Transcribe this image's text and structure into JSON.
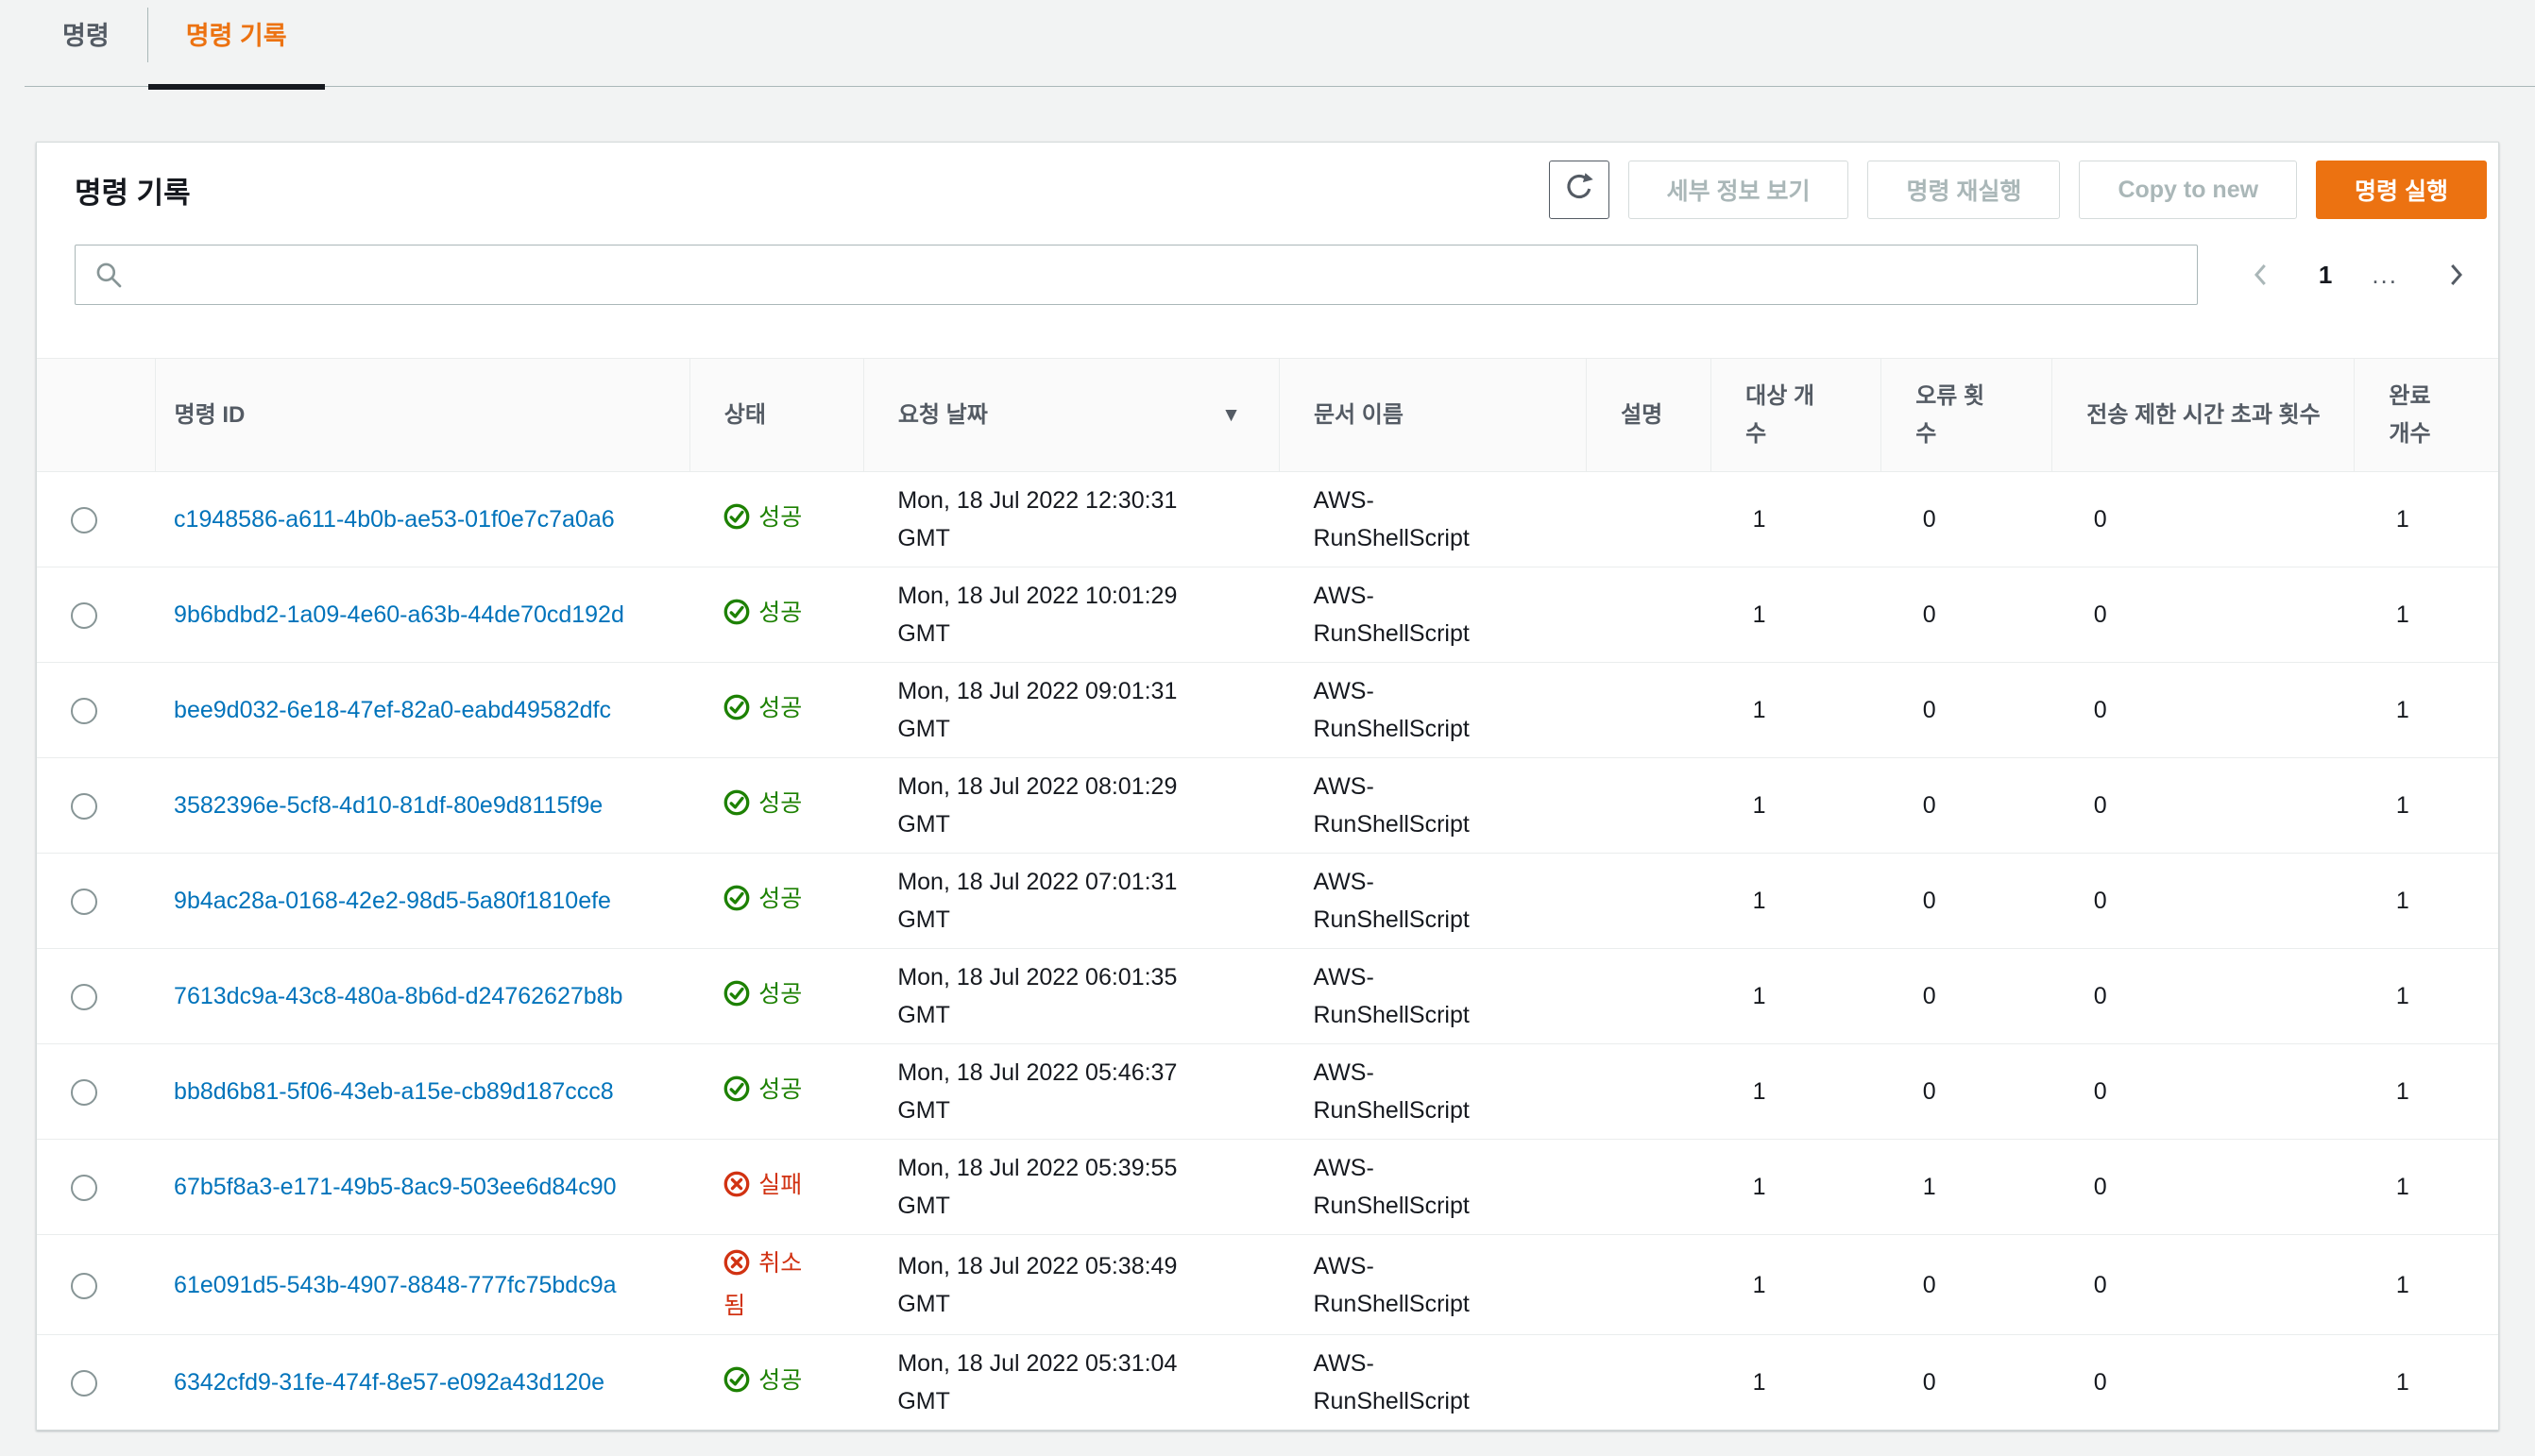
{
  "tabs": [
    {
      "label": "명령",
      "active": false
    },
    {
      "label": "명령 기록",
      "active": true
    }
  ],
  "panel": {
    "title": "명령 기록"
  },
  "toolbar": {
    "refresh_icon": "refresh-icon",
    "view_details_label": "세부 정보 보기",
    "rerun_label": "명령 재실행",
    "copy_to_new_label": "Copy to new",
    "run_command_label": "명령 실행"
  },
  "search": {
    "placeholder": "",
    "icon": "search-icon"
  },
  "pagination": {
    "prev_icon": "chevron-left-icon",
    "current_page": "1",
    "ellipsis": "...",
    "next_icon": "chevron-right-icon"
  },
  "colors": {
    "accent": "#ec7211",
    "link": "#0073bb",
    "success": "#1d8102",
    "error": "#d13212"
  },
  "table": {
    "columns": [
      {
        "key": "id",
        "label": "명령 ID"
      },
      {
        "key": "status",
        "label": "상태"
      },
      {
        "key": "date",
        "label": "요청 날짜",
        "sorted": "desc"
      },
      {
        "key": "doc",
        "label": "문서 이름"
      },
      {
        "key": "desc",
        "label": "설명"
      },
      {
        "key": "targets",
        "label": "대상 개수"
      },
      {
        "key": "errors",
        "label": "오류 횟수"
      },
      {
        "key": "timeouts",
        "label": "전송 제한 시간 초과 횟수"
      },
      {
        "key": "completed",
        "label": "완료 개수"
      }
    ],
    "rows": [
      {
        "id": "c1948586-a611-4b0b-ae53-01f0e7c7a0a6",
        "status": {
          "type": "success",
          "label": "성공"
        },
        "date": "Mon, 18 Jul 2022 12:30:31 GMT",
        "doc": "AWS-RunShellScript",
        "desc": "",
        "targets": "1",
        "errors": "0",
        "timeouts": "0",
        "completed": "1"
      },
      {
        "id": "9b6bdbd2-1a09-4e60-a63b-44de70cd192d",
        "status": {
          "type": "success",
          "label": "성공"
        },
        "date": "Mon, 18 Jul 2022 10:01:29 GMT",
        "doc": "AWS-RunShellScript",
        "desc": "",
        "targets": "1",
        "errors": "0",
        "timeouts": "0",
        "completed": "1"
      },
      {
        "id": "bee9d032-6e18-47ef-82a0-eabd49582dfc",
        "status": {
          "type": "success",
          "label": "성공"
        },
        "date": "Mon, 18 Jul 2022 09:01:31 GMT",
        "doc": "AWS-RunShellScript",
        "desc": "",
        "targets": "1",
        "errors": "0",
        "timeouts": "0",
        "completed": "1"
      },
      {
        "id": "3582396e-5cf8-4d10-81df-80e9d8115f9e",
        "status": {
          "type": "success",
          "label": "성공"
        },
        "date": "Mon, 18 Jul 2022 08:01:29 GMT",
        "doc": "AWS-RunShellScript",
        "desc": "",
        "targets": "1",
        "errors": "0",
        "timeouts": "0",
        "completed": "1"
      },
      {
        "id": "9b4ac28a-0168-42e2-98d5-5a80f1810efe",
        "status": {
          "type": "success",
          "label": "성공"
        },
        "date": "Mon, 18 Jul 2022 07:01:31 GMT",
        "doc": "AWS-RunShellScript",
        "desc": "",
        "targets": "1",
        "errors": "0",
        "timeouts": "0",
        "completed": "1"
      },
      {
        "id": "7613dc9a-43c8-480a-8b6d-d24762627b8b",
        "status": {
          "type": "success",
          "label": "성공"
        },
        "date": "Mon, 18 Jul 2022 06:01:35 GMT",
        "doc": "AWS-RunShellScript",
        "desc": "",
        "targets": "1",
        "errors": "0",
        "timeouts": "0",
        "completed": "1"
      },
      {
        "id": "bb8d6b81-5f06-43eb-a15e-cb89d187ccc8",
        "status": {
          "type": "success",
          "label": "성공"
        },
        "date": "Mon, 18 Jul 2022 05:46:37 GMT",
        "doc": "AWS-RunShellScript",
        "desc": "",
        "targets": "1",
        "errors": "0",
        "timeouts": "0",
        "completed": "1"
      },
      {
        "id": "67b5f8a3-e171-49b5-8ac9-503ee6d84c90",
        "status": {
          "type": "error",
          "label": "실패"
        },
        "date": "Mon, 18 Jul 2022 05:39:55 GMT",
        "doc": "AWS-RunShellScript",
        "desc": "",
        "targets": "1",
        "errors": "1",
        "timeouts": "0",
        "completed": "1"
      },
      {
        "id": "61e091d5-543b-4907-8848-777fc75bdc9a",
        "status": {
          "type": "error",
          "label": "취소됨"
        },
        "date": "Mon, 18 Jul 2022 05:38:49 GMT",
        "doc": "AWS-RunShellScript",
        "desc": "",
        "targets": "1",
        "errors": "0",
        "timeouts": "0",
        "completed": "1"
      },
      {
        "id": "6342cfd9-31fe-474f-8e57-e092a43d120e",
        "status": {
          "type": "success",
          "label": "성공"
        },
        "date": "Mon, 18 Jul 2022 05:31:04 GMT",
        "doc": "AWS-RunShellScript",
        "desc": "",
        "targets": "1",
        "errors": "0",
        "timeouts": "0",
        "completed": "1"
      }
    ]
  }
}
